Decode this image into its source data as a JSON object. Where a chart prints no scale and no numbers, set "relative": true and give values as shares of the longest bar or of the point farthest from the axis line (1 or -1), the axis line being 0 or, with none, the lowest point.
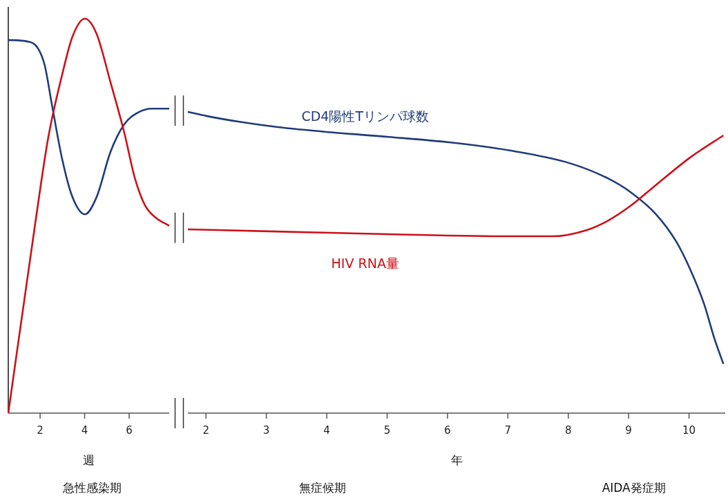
{
  "chart_data": [
    {
      "type": "line",
      "relative": true,
      "xlabel": "週",
      "xlim": [
        0.57,
        7.8
      ],
      "xticks": [
        2,
        4,
        6
      ],
      "tick_labels": "x",
      "annotations": [
        "急性感染期"
      ],
      "series": [
        {
          "color": "#1f3b7a",
          "x": [
            0.57,
            1.44,
            1.9,
            2.21,
            2.52,
            2.99,
            3.45,
            4.01,
            4.54,
            5.16,
            5.78,
            6.4,
            7.02,
            7.8
          ],
          "values": [
            0.946,
            0.942,
            0.925,
            0.881,
            0.785,
            0.644,
            0.548,
            0.504,
            0.548,
            0.662,
            0.732,
            0.762,
            0.772,
            0.772
          ]
        },
        {
          "color": "#cc1018",
          "x": [
            0.57,
            1.75,
            2.37,
            2.99,
            3.45,
            4.01,
            4.54,
            5.16,
            5.78,
            6.25,
            6.71,
            7.18,
            7.8
          ],
          "values": [
            0,
            0.469,
            0.7,
            0.858,
            0.954,
            1.0,
            0.961,
            0.839,
            0.711,
            0.597,
            0.527,
            0.496,
            0.475
          ]
        }
      ]
    },
    {
      "type": "line",
      "relative": true,
      "xlabel": "年",
      "xlim": [
        1.7,
        10.6
      ],
      "xticks": [
        2,
        3,
        4,
        5,
        6,
        7,
        8,
        9,
        10
      ],
      "tick_labels": "x",
      "annotations": [
        "無症候期",
        "AIDA発症期"
      ],
      "series": [
        {
          "name": "CD4陽性Tリンパ球数",
          "color": "#1f3b7a",
          "x": [
            1.7,
            2.02,
            2.59,
            3.17,
            4.02,
            5.03,
            6.03,
            7.03,
            8.02,
            8.65,
            9.03,
            9.45,
            9.79,
            10.02,
            10.25,
            10.42,
            10.57
          ],
          "values": [
            1.0,
            0.986,
            0.966,
            0.95,
            0.933,
            0.917,
            0.899,
            0.872,
            0.83,
            0.78,
            0.734,
            0.661,
            0.569,
            0.477,
            0.362,
            0.248,
            0.163
          ]
        },
        {
          "name": "HIV RNA量",
          "color": "#cc1018",
          "x": [
            1.7,
            3.17,
            5.03,
            7.03,
            7.74,
            8.31,
            8.65,
            9.03,
            9.45,
            10.02,
            10.57
          ],
          "values": [
            0.61,
            0.603,
            0.594,
            0.587,
            0.587,
            0.608,
            0.638,
            0.688,
            0.757,
            0.849,
            0.922
          ]
        }
      ]
    }
  ]
}
